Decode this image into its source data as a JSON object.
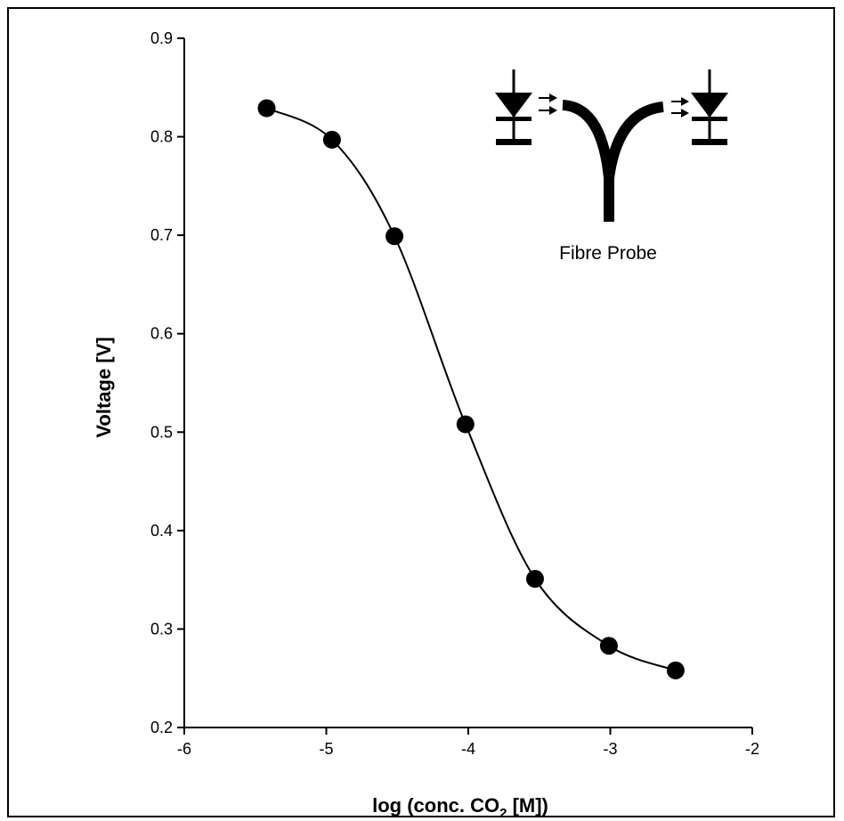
{
  "chart_data": {
    "type": "scatter",
    "xlabel": "log (conc. CO",
    "xlabel_sub": "2",
    "xlabel_unit": " [M])",
    "ylabel": "Voltage  [V]",
    "xlim": [
      -6,
      -2
    ],
    "ylim": [
      0.2,
      0.9
    ],
    "xticks": [
      "-6",
      "-5",
      "-4",
      "-3",
      "-2"
    ],
    "yticks": [
      "0.2",
      "0.3",
      "0.4",
      "0.5",
      "0.6",
      "0.7",
      "0.8",
      "0.9"
    ],
    "series": [
      {
        "x": [
          -5.42,
          -4.96,
          -4.52,
          -4.02,
          -3.53,
          -3.01,
          -2.54
        ],
        "y": [
          0.829,
          0.797,
          0.699,
          0.508,
          0.351,
          0.283,
          0.258
        ],
        "fit_line": true
      }
    ],
    "grid": false,
    "inset_label": "Fibre Probe"
  },
  "colors": {
    "ink": "#000000",
    "background": "#ffffff"
  }
}
